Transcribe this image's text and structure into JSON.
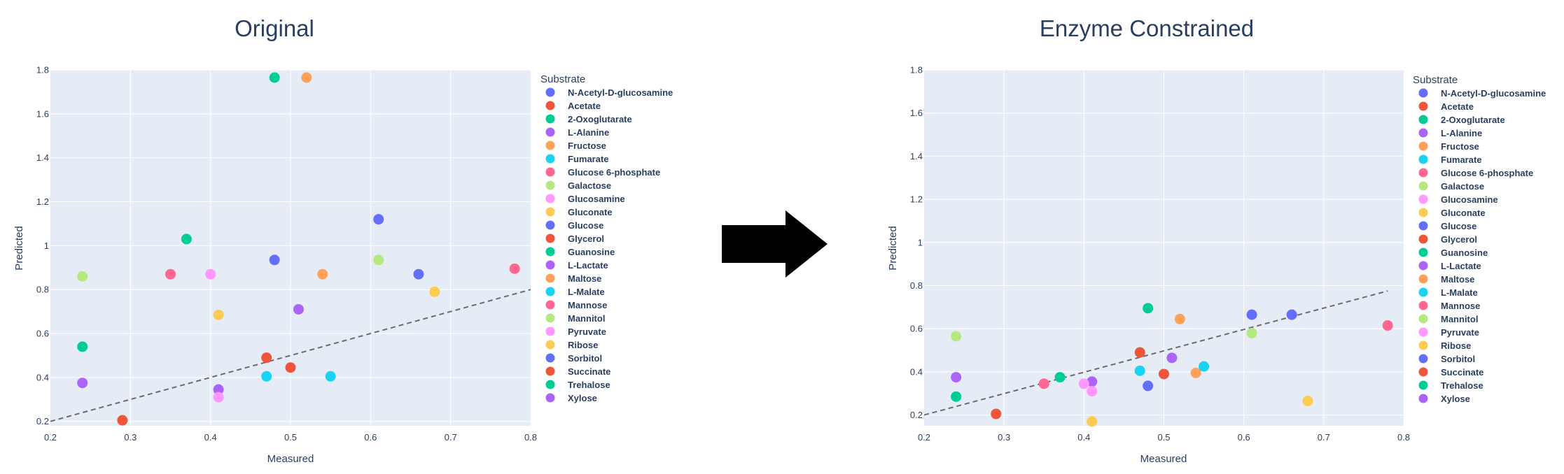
{
  "arrow": {
    "icon": "right-arrow-icon",
    "color": "#000000"
  },
  "chart_data": [
    {
      "type": "scatter",
      "title": "Original",
      "xlabel": "Measured",
      "ylabel": "Predicted",
      "xlim": [
        0.2,
        0.8
      ],
      "ylim": [
        0.18,
        1.8
      ],
      "xticks": [
        "0.2",
        "0.3",
        "0.4",
        "0.5",
        "0.6",
        "0.7",
        "0.8"
      ],
      "xtick_values": [
        0.2,
        0.3,
        0.4,
        0.5,
        0.6,
        0.7,
        0.8
      ],
      "yticks": [
        "0.2",
        "0.4",
        "0.6",
        "0.8",
        "1",
        "1.2",
        "1.4",
        "1.6",
        "1.8"
      ],
      "ytick_values": [
        0.2,
        0.4,
        0.6,
        0.8,
        1.0,
        1.2,
        1.4,
        1.6,
        1.8
      ],
      "grid": true,
      "reference_line": {
        "style": "dashed",
        "color": "#6b6b6b",
        "x": [
          0.2,
          0.8
        ],
        "y": [
          0.2,
          0.8
        ]
      },
      "legend": {
        "title": "Substrate",
        "placement": "right"
      },
      "series": [
        {
          "name": "N-Acetyl-D-glucosamine",
          "color": "#636efa",
          "points": [
            [
              0.48,
              0.935
            ]
          ]
        },
        {
          "name": "Acetate",
          "color": "#ef553b",
          "points": [
            [
              0.47,
              0.49
            ]
          ]
        },
        {
          "name": "2-Oxoglutarate",
          "color": "#00cc96",
          "points": [
            [
              0.48,
              1.765
            ]
          ]
        },
        {
          "name": "L-Alanine",
          "color": "#ab63fa",
          "points": [
            [
              0.41,
              0.345
            ]
          ]
        },
        {
          "name": "Fructose",
          "color": "#ffa15a",
          "points": [
            [
              0.52,
              1.765
            ]
          ]
        },
        {
          "name": "Fumarate",
          "color": "#19d3f3",
          "points": [
            [
              0.47,
              0.405
            ]
          ]
        },
        {
          "name": "Glucose 6-phosphate",
          "color": "#ff6692",
          "points": [
            [
              0.35,
              0.87
            ]
          ]
        },
        {
          "name": "Galactose",
          "color": "#b6e880",
          "points": [
            [
              0.61,
              0.935
            ]
          ]
        },
        {
          "name": "Glucosamine",
          "color": "#ff97ff",
          "points": [
            [
              0.41,
              0.31
            ]
          ]
        },
        {
          "name": "Gluconate",
          "color": "#fecb52",
          "points": [
            [
              0.41,
              0.685
            ]
          ]
        },
        {
          "name": "Glucose",
          "color": "#636efa",
          "points": [
            [
              0.61,
              1.12
            ]
          ]
        },
        {
          "name": "Glycerol",
          "color": "#ef553b",
          "points": [
            [
              0.5,
              0.445
            ]
          ]
        },
        {
          "name": "Guanosine",
          "color": "#00cc96",
          "points": [
            [
              0.37,
              1.03
            ]
          ]
        },
        {
          "name": "L-Lactate",
          "color": "#ab63fa",
          "points": [
            [
              0.51,
              0.71
            ]
          ]
        },
        {
          "name": "Maltose",
          "color": "#ffa15a",
          "points": [
            [
              0.54,
              0.87
            ]
          ]
        },
        {
          "name": "L-Malate",
          "color": "#19d3f3",
          "points": [
            [
              0.55,
              0.405
            ]
          ]
        },
        {
          "name": "Mannose",
          "color": "#ff6692",
          "points": [
            [
              0.78,
              0.895
            ]
          ]
        },
        {
          "name": "Mannitol",
          "color": "#b6e880",
          "points": [
            [
              0.24,
              0.86
            ]
          ]
        },
        {
          "name": "Pyruvate",
          "color": "#ff97ff",
          "points": [
            [
              0.4,
              0.87
            ]
          ]
        },
        {
          "name": "Ribose",
          "color": "#fecb52",
          "points": [
            [
              0.68,
              0.79
            ]
          ]
        },
        {
          "name": "Sorbitol",
          "color": "#636efa",
          "points": [
            [
              0.66,
              0.87
            ]
          ]
        },
        {
          "name": "Succinate",
          "color": "#ef553b",
          "points": [
            [
              0.29,
              0.205
            ]
          ]
        },
        {
          "name": "Trehalose",
          "color": "#00cc96",
          "points": [
            [
              0.24,
              0.54
            ]
          ]
        },
        {
          "name": "Xylose",
          "color": "#ab63fa",
          "points": [
            [
              0.24,
              0.375
            ]
          ]
        }
      ]
    },
    {
      "type": "scatter",
      "title": "Enzyme Constrained",
      "xlabel": "Measured",
      "ylabel": "Predicted",
      "xlim": [
        0.2,
        0.8
      ],
      "ylim": [
        0.15,
        1.8
      ],
      "xticks": [
        "0.2",
        "0.3",
        "0.4",
        "0.5",
        "0.6",
        "0.7",
        "0.8"
      ],
      "xtick_values": [
        0.2,
        0.3,
        0.4,
        0.5,
        0.6,
        0.7,
        0.8
      ],
      "yticks": [
        "0.2",
        "0.4",
        "0.6",
        "0.8",
        "1",
        "1.2",
        "1.4",
        "1.6",
        "1.8"
      ],
      "ytick_values": [
        0.2,
        0.4,
        0.6,
        0.8,
        1.0,
        1.2,
        1.4,
        1.6,
        1.8
      ],
      "grid": true,
      "reference_line": {
        "style": "dashed",
        "color": "#6b6b6b",
        "x": [
          0.2,
          0.78
        ],
        "y": [
          0.2,
          0.775
        ]
      },
      "legend": {
        "title": "Substrate",
        "placement": "right"
      },
      "series": [
        {
          "name": "N-Acetyl-D-glucosamine",
          "color": "#636efa",
          "points": [
            [
              0.48,
              0.335
            ]
          ]
        },
        {
          "name": "Acetate",
          "color": "#ef553b",
          "points": [
            [
              0.47,
              0.49
            ]
          ]
        },
        {
          "name": "2-Oxoglutarate",
          "color": "#00cc96",
          "points": [
            [
              0.48,
              0.695
            ]
          ]
        },
        {
          "name": "L-Alanine",
          "color": "#ab63fa",
          "points": [
            [
              0.41,
              0.355
            ]
          ]
        },
        {
          "name": "Fructose",
          "color": "#ffa15a",
          "points": [
            [
              0.52,
              0.645
            ]
          ]
        },
        {
          "name": "Fumarate",
          "color": "#19d3f3",
          "points": [
            [
              0.47,
              0.405
            ]
          ]
        },
        {
          "name": "Glucose 6-phosphate",
          "color": "#ff6692",
          "points": [
            [
              0.35,
              0.345
            ]
          ]
        },
        {
          "name": "Galactose",
          "color": "#b6e880",
          "points": [
            [
              0.61,
              0.58
            ]
          ]
        },
        {
          "name": "Glucosamine",
          "color": "#ff97ff",
          "points": [
            [
              0.41,
              0.31
            ]
          ]
        },
        {
          "name": "Gluconate",
          "color": "#fecb52",
          "points": [
            [
              0.41,
              0.17
            ]
          ]
        },
        {
          "name": "Glucose",
          "color": "#636efa",
          "points": [
            [
              0.61,
              0.665
            ]
          ]
        },
        {
          "name": "Glycerol",
          "color": "#ef553b",
          "points": [
            [
              0.5,
              0.39
            ]
          ]
        },
        {
          "name": "Guanosine",
          "color": "#00cc96",
          "points": [
            [
              0.37,
              0.375
            ]
          ]
        },
        {
          "name": "L-Lactate",
          "color": "#ab63fa",
          "points": [
            [
              0.51,
              0.465
            ]
          ]
        },
        {
          "name": "Maltose",
          "color": "#ffa15a",
          "points": [
            [
              0.54,
              0.395
            ]
          ]
        },
        {
          "name": "L-Malate",
          "color": "#19d3f3",
          "points": [
            [
              0.55,
              0.425
            ]
          ]
        },
        {
          "name": "Mannose",
          "color": "#ff6692",
          "points": [
            [
              0.78,
              0.615
            ]
          ]
        },
        {
          "name": "Mannitol",
          "color": "#b6e880",
          "points": [
            [
              0.24,
              0.565
            ]
          ]
        },
        {
          "name": "Pyruvate",
          "color": "#ff97ff",
          "points": [
            [
              0.4,
              0.345
            ]
          ]
        },
        {
          "name": "Ribose",
          "color": "#fecb52",
          "points": [
            [
              0.68,
              0.265
            ]
          ]
        },
        {
          "name": "Sorbitol",
          "color": "#636efa",
          "points": [
            [
              0.66,
              0.665
            ]
          ]
        },
        {
          "name": "Succinate",
          "color": "#ef553b",
          "points": [
            [
              0.29,
              0.205
            ]
          ]
        },
        {
          "name": "Trehalose",
          "color": "#00cc96",
          "points": [
            [
              0.24,
              0.285
            ]
          ]
        },
        {
          "name": "Xylose",
          "color": "#ab63fa",
          "points": [
            [
              0.24,
              0.375
            ]
          ]
        }
      ]
    }
  ]
}
